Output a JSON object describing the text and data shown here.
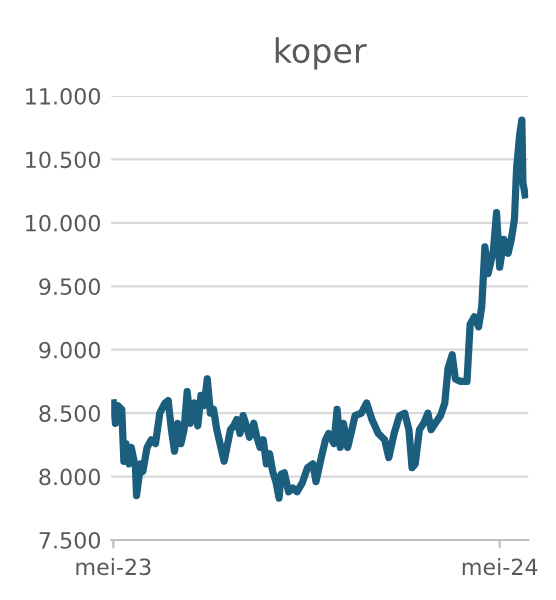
{
  "chart_data": {
    "type": "line",
    "title": "koper",
    "x": [
      "2023-05-01",
      "2023-05-03",
      "2023-05-05",
      "2023-05-09",
      "2023-05-11",
      "2023-05-13",
      "2023-05-16",
      "2023-05-18",
      "2023-05-22",
      "2023-05-23",
      "2023-05-27",
      "2023-05-29",
      "2023-06-02",
      "2023-06-06",
      "2023-06-10",
      "2023-06-14",
      "2023-06-19",
      "2023-06-22",
      "2023-06-25",
      "2023-06-28",
      "2023-07-01",
      "2023-07-04",
      "2023-07-07",
      "2023-07-10",
      "2023-07-13",
      "2023-07-17",
      "2023-07-20",
      "2023-07-23",
      "2023-07-26",
      "2023-07-29",
      "2023-08-01",
      "2023-08-04",
      "2023-08-07",
      "2023-08-14",
      "2023-08-20",
      "2023-08-23",
      "2023-08-26",
      "2023-08-29",
      "2023-09-01",
      "2023-09-04",
      "2023-09-07",
      "2023-09-11",
      "2023-09-14",
      "2023-09-17",
      "2023-09-20",
      "2023-09-23",
      "2023-09-26",
      "2023-09-29",
      "2023-10-02",
      "2023-10-05",
      "2023-10-07",
      "2023-10-10",
      "2023-10-14",
      "2023-10-18",
      "2023-10-22",
      "2023-10-27",
      "2023-11-01",
      "2023-11-06",
      "2023-11-09",
      "2023-11-14",
      "2023-11-18",
      "2023-11-21",
      "2023-11-26",
      "2023-11-29",
      "2023-12-02",
      "2023-12-05",
      "2023-12-09",
      "2023-12-13",
      "2023-12-16",
      "2023-12-22",
      "2023-12-27",
      "2024-01-01",
      "2024-01-07",
      "2024-01-13",
      "2024-01-17",
      "2024-01-22",
      "2024-01-27",
      "2024-02-01",
      "2024-02-05",
      "2024-02-08",
      "2024-02-11",
      "2024-02-15",
      "2024-02-19",
      "2024-02-23",
      "2024-02-26",
      "2024-03-01",
      "2024-03-06",
      "2024-03-10",
      "2024-03-13",
      "2024-03-17",
      "2024-03-20",
      "2024-03-25",
      "2024-03-31",
      "2024-04-03",
      "2024-04-07",
      "2024-04-11",
      "2024-04-14",
      "2024-04-17",
      "2024-04-20",
      "2024-04-25",
      "2024-04-28",
      "2024-05-01",
      "2024-05-05",
      "2024-05-09",
      "2024-05-12",
      "2024-05-15",
      "2024-05-17",
      "2024-05-20",
      "2024-05-22",
      "2024-05-23",
      "2024-05-25"
    ],
    "series": [
      {
        "color": "#1b5e7e",
        "values": [
          8580,
          8420,
          8560,
          8530,
          8120,
          8260,
          8100,
          8230,
          8070,
          7850,
          8100,
          8040,
          8230,
          8290,
          8260,
          8500,
          8580,
          8600,
          8370,
          8200,
          8420,
          8260,
          8370,
          8670,
          8420,
          8580,
          8400,
          8640,
          8560,
          8770,
          8500,
          8530,
          8370,
          8120,
          8370,
          8400,
          8450,
          8340,
          8480,
          8400,
          8310,
          8420,
          8310,
          8230,
          8290,
          8100,
          8180,
          8040,
          7960,
          7830,
          8020,
          8030,
          7880,
          7910,
          7880,
          7950,
          8070,
          8100,
          7960,
          8150,
          8290,
          8340,
          8260,
          8530,
          8230,
          8420,
          8230,
          8370,
          8480,
          8500,
          8580,
          8450,
          8340,
          8290,
          8150,
          8340,
          8480,
          8500,
          8370,
          8070,
          8100,
          8370,
          8420,
          8500,
          8370,
          8420,
          8480,
          8580,
          8850,
          8960,
          8770,
          8750,
          8750,
          9200,
          9260,
          9180,
          9340,
          9810,
          9600,
          9780,
          10080,
          9650,
          9870,
          9760,
          9870,
          10030,
          10430,
          10700,
          10810,
          10320,
          10220
        ]
      }
    ],
    "xlim": [
      "2023-04-29",
      "2024-05-28"
    ],
    "xticks": [
      {
        "value": "2023-05-01",
        "label": "mei-23"
      },
      {
        "value": "2024-05-01",
        "label": "mei-24"
      }
    ],
    "ylim": [
      7500,
      11000
    ],
    "yticks": [
      {
        "value": 7500,
        "label": "7.500"
      },
      {
        "value": 8000,
        "label": "8.000"
      },
      {
        "value": 8500,
        "label": "8.500"
      },
      {
        "value": 9000,
        "label": "9.000"
      },
      {
        "value": 9500,
        "label": "9.500"
      },
      {
        "value": 10000,
        "label": "10.000"
      },
      {
        "value": 10500,
        "label": "10.500"
      },
      {
        "value": 11000,
        "label": "11.000"
      }
    ],
    "grid": "y",
    "line_style": "solid",
    "marker": "none",
    "legend": false
  }
}
